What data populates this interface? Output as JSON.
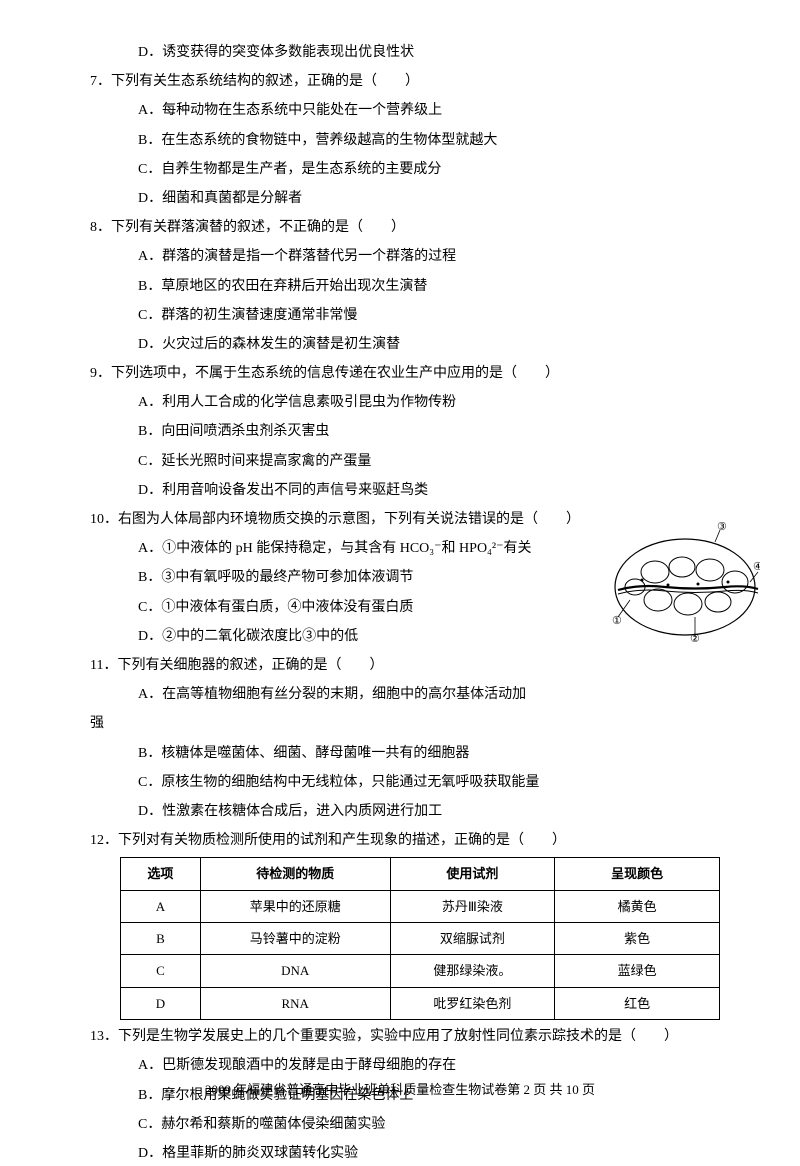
{
  "q6": {
    "optionD": "D．诱变获得的突变体多数能表现出优良性状"
  },
  "q7": {
    "stem": "7．下列有关生态系统结构的叙述，正确的是（　　）",
    "optionA": "A．每种动物在生态系统中只能处在一个营养级上",
    "optionB": "B．在生态系统的食物链中，营养级越高的生物体型就越大",
    "optionC": "C．自养生物都是生产者，是生态系统的主要成分",
    "optionD": "D．细菌和真菌都是分解者"
  },
  "q8": {
    "stem": "8．下列有关群落演替的叙述，不正确的是（　　）",
    "optionA": "A．群落的演替是指一个群落替代另一个群落的过程",
    "optionB": "B．草原地区的农田在弃耕后开始出现次生演替",
    "optionC": "C．群落的初生演替速度通常非常慢",
    "optionD": "D．火灾过后的森林发生的演替是初生演替"
  },
  "q9": {
    "stem": "9．下列选项中，不属于生态系统的信息传递在农业生产中应用的是（　　）",
    "optionA": "A．利用人工合成的化学信息素吸引昆虫为作物传粉",
    "optionB": "B．向田间喷洒杀虫剂杀灭害虫",
    "optionC": "C．延长光照时间来提高家禽的产蛋量",
    "optionD": "D．利用音响设备发出不同的声信号来驱赶鸟类"
  },
  "q10": {
    "stem": "10．右图为人体局部内环境物质交换的示意图，下列有关说法错误的是（　　）",
    "optionA": "A．①中液体的 pH 能保持稳定，与其含有 HCO₃⁻和 HPO₄²⁻有关",
    "optionB": "B．③中有氧呼吸的最终产物可参加体液调节",
    "optionC": "C．①中液体有蛋白质，④中液体没有蛋白质",
    "optionD": "D．②中的二氧化碳浓度比③中的低"
  },
  "q11": {
    "stem": "11．下列有关细胞器的叙述，正确的是（　　）",
    "optionA": "A．在高等植物细胞有丝分裂的末期，细胞中的高尔基体活动加",
    "optionAcont": "强",
    "optionB": "B．核糖体是噬菌体、细菌、酵母菌唯一共有的细胞器",
    "optionC": "C．原核生物的细胞结构中无线粒体，只能通过无氧呼吸获取能量",
    "optionD": "D．性激素在核糖体合成后，进入内质网进行加工"
  },
  "q12": {
    "stem": "12．下列对有关物质检测所使用的试剂和产生现象的描述，正确的是（　　）",
    "table": {
      "headers": [
        "选项",
        "待检测的物质",
        "使用试剂",
        "呈现颜色"
      ],
      "rows": [
        [
          "A",
          "苹果中的还原糖",
          "苏丹Ⅲ染液",
          "橘黄色"
        ],
        [
          "B",
          "马铃薯中的淀粉",
          "双缩脲试剂",
          "紫色"
        ],
        [
          "C",
          "DNA",
          "健那绿染液。",
          "蓝绿色"
        ],
        [
          "D",
          "RNA",
          "吡罗红染色剂",
          "红色"
        ]
      ],
      "colWidths": [
        "80px",
        "190px",
        "165px",
        "165px"
      ]
    }
  },
  "q13": {
    "stem": "13．下列是生物学发展史上的几个重要实验，实验中应用了放射性同位素示踪技术的是（　　）",
    "optionA": "A．巴斯德发现酿酒中的发酵是由于酵母细胞的存在",
    "optionB": "B．摩尔根用果蝇做实验证明基因在染色体上",
    "optionC": "C．赫尔希和蔡斯的噬菌体侵染细菌实验",
    "optionD": "D．格里菲斯的肺炎双球菌转化实验"
  },
  "footer": "2009 年福建省普通高中毕业班单科质量检查生物试卷第 2 页 共 10 页",
  "diagram": {
    "labels": [
      "①",
      "②",
      "③",
      "④"
    ]
  }
}
